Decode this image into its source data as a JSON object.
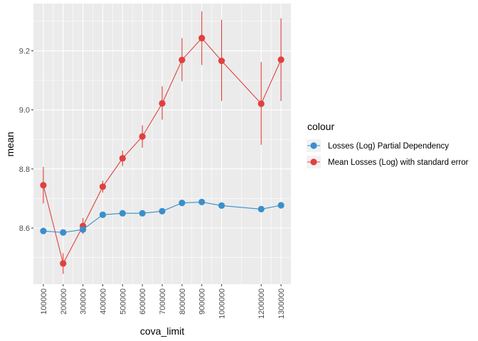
{
  "chart_data": {
    "type": "line",
    "xlabel": "cova_limit",
    "ylabel": "mean",
    "x": [
      100000,
      200000,
      300000,
      400000,
      500000,
      600000,
      700000,
      800000,
      900000,
      1000000,
      1200000,
      1300000
    ],
    "x_tick_labels": [
      "100000",
      "200000",
      "300000",
      "400000",
      "500000",
      "600000",
      "700000",
      "800000",
      "900000",
      "1000000",
      "1200000",
      "1300000"
    ],
    "y_ticks": [
      8.6,
      8.8,
      9.0,
      9.2
    ],
    "y_tick_labels": [
      "8.6",
      "8.8",
      "9.0",
      "9.2"
    ],
    "xlim": [
      50000,
      1350000
    ],
    "ylim": [
      8.41,
      9.36
    ],
    "grid": true,
    "legend": {
      "title": "colour",
      "position": "right"
    },
    "series": [
      {
        "name": "Losses (Log) Partial Dependency",
        "color": "#3A8FCC",
        "values": [
          8.59,
          8.585,
          8.595,
          8.645,
          8.65,
          8.65,
          8.657,
          8.685,
          8.688,
          8.676,
          8.664,
          8.677
        ]
      },
      {
        "name": "Mean Losses (Log) with standard error",
        "color": "#E0403E",
        "values": [
          8.745,
          8.48,
          8.607,
          8.74,
          8.836,
          8.91,
          9.022,
          9.169,
          9.243,
          9.166,
          9.021,
          9.17
        ],
        "err_low": [
          8.683,
          8.445,
          8.58,
          8.72,
          8.81,
          8.872,
          8.967,
          9.097,
          9.152,
          9.03,
          8.882,
          9.03
        ],
        "err_high": [
          8.807,
          8.515,
          8.634,
          8.76,
          8.862,
          8.948,
          9.08,
          9.243,
          9.334,
          9.305,
          9.162,
          9.31
        ]
      }
    ]
  }
}
